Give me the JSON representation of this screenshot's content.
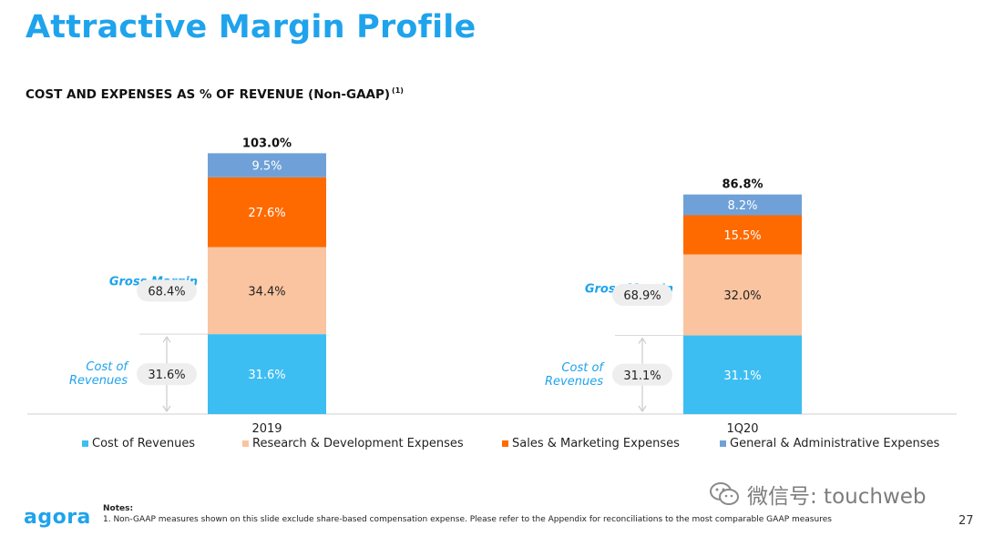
{
  "header": {
    "title": "Attractive Margin Profile",
    "subtitle": "COST AND EXPENSES AS % OF REVENUE (Non-GAAP)",
    "subtitle_note": "(1)"
  },
  "chart_data": {
    "type": "bar",
    "stacked": true,
    "categories": [
      "2019",
      "1Q20"
    ],
    "series": [
      {
        "name": "Cost of Revenues",
        "color": "#3dbef2",
        "values": [
          31.6,
          31.1
        ],
        "labels": [
          "31.6%",
          "31.1%"
        ]
      },
      {
        "name": "Research & Development Expenses",
        "color": "#f9c49f",
        "values": [
          34.4,
          32.0
        ],
        "labels": [
          "34.4%",
          "32.0%"
        ]
      },
      {
        "name": "Sales & Marketing Expenses",
        "color": "#ff6a00",
        "values": [
          27.6,
          15.5
        ],
        "labels": [
          "27.6%",
          "15.5%"
        ]
      },
      {
        "name": "General & Administrative Expenses",
        "color": "#6fa1d8",
        "values": [
          9.5,
          8.2
        ],
        "labels": [
          "9.5%",
          "8.2%"
        ]
      }
    ],
    "totals": [
      "103.0%",
      "86.8%"
    ],
    "gross_margin_label": "Gross Margin",
    "gross_margin_values": [
      "68.4%",
      "68.9%"
    ],
    "cost_of_revenues_label": "Cost of Revenues",
    "cost_of_revenues_values": [
      "31.6%",
      "31.1%"
    ],
    "ylim": [
      0,
      110
    ]
  },
  "notes": {
    "heading": "Notes:",
    "items": [
      "1.  Non-GAAP measures shown on this slide exclude share-based compensation expense. Please refer to the Appendix for reconciliations to the most comparable GAAP measures"
    ]
  },
  "footer": {
    "logo": "agora",
    "page_number": "27",
    "watermark": "微信号: touchweb"
  }
}
